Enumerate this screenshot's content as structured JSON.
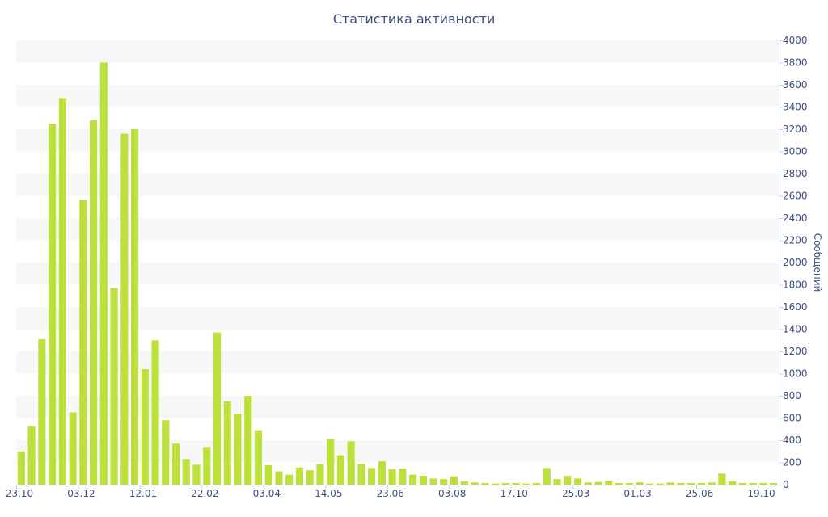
{
  "colors": {
    "bar": "#bde13c",
    "band": "#f7f7f7",
    "text": "#3d4f7f",
    "axis": "#c8cfe0"
  },
  "chart_data": {
    "type": "bar",
    "title": "Статистика активности",
    "xlabel": "",
    "ylabel": "Сообщений",
    "ylim": [
      0,
      4000
    ],
    "yticks": [
      0,
      200,
      400,
      600,
      800,
      1000,
      1200,
      1400,
      1600,
      1800,
      2000,
      2200,
      2400,
      2600,
      2800,
      3000,
      3200,
      3400,
      3600,
      3800,
      4000
    ],
    "x_tick_labels": [
      {
        "label": "23.10",
        "index": 0
      },
      {
        "label": "03.12",
        "index": 6
      },
      {
        "label": "12.01",
        "index": 12
      },
      {
        "label": "22.02",
        "index": 18
      },
      {
        "label": "03.04",
        "index": 24
      },
      {
        "label": "14.05",
        "index": 30
      },
      {
        "label": "23.06",
        "index": 36
      },
      {
        "label": "03.08",
        "index": 42
      },
      {
        "label": "17.10",
        "index": 48
      },
      {
        "label": "25.03",
        "index": 54
      },
      {
        "label": "01.03",
        "index": 60
      },
      {
        "label": "25.06",
        "index": 66
      },
      {
        "label": "19.10",
        "index": 72
      }
    ],
    "series": [
      {
        "values": [
          300,
          530,
          1310,
          3250,
          3480,
          650,
          2560,
          3280,
          3800,
          1770,
          3160,
          3200,
          1040,
          1300,
          580,
          370,
          230,
          180,
          340,
          1370,
          750,
          640,
          800,
          490,
          175,
          120,
          90,
          155,
          130,
          185,
          410,
          265,
          390,
          185,
          150,
          210,
          140,
          145,
          90,
          80,
          55,
          50,
          75,
          30,
          20,
          15,
          10,
          15,
          15,
          10,
          15,
          150,
          50,
          80,
          55,
          20,
          25,
          35,
          15,
          15,
          20,
          10,
          10,
          20,
          15,
          15,
          15,
          20,
          100,
          30,
          15,
          15,
          15,
          15
        ]
      }
    ]
  }
}
